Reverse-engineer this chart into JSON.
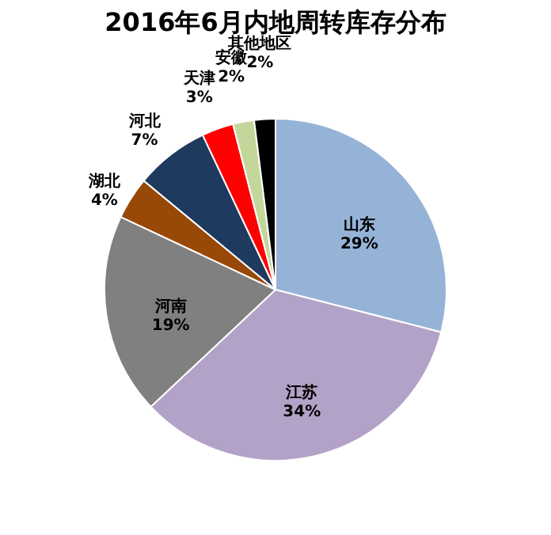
{
  "chart_data": {
    "type": "pie",
    "title": "2016年6月内地周转库存分布",
    "categories": [
      "山东",
      "江苏",
      "河南",
      "湖北",
      "河北",
      "天津",
      "安徽",
      "其他地区"
    ],
    "values": [
      29,
      34,
      19,
      4,
      7,
      3,
      2,
      2
    ],
    "value_labels": [
      "29%",
      "34%",
      "19%",
      "4%",
      "7%",
      "3%",
      "2%",
      "2%"
    ],
    "colors": [
      "#95b3d7",
      "#b3a2c7",
      "#808080",
      "#984807",
      "#1f3a5f",
      "#ff0000",
      "#c4d79b",
      "#000000"
    ],
    "legend": false
  }
}
